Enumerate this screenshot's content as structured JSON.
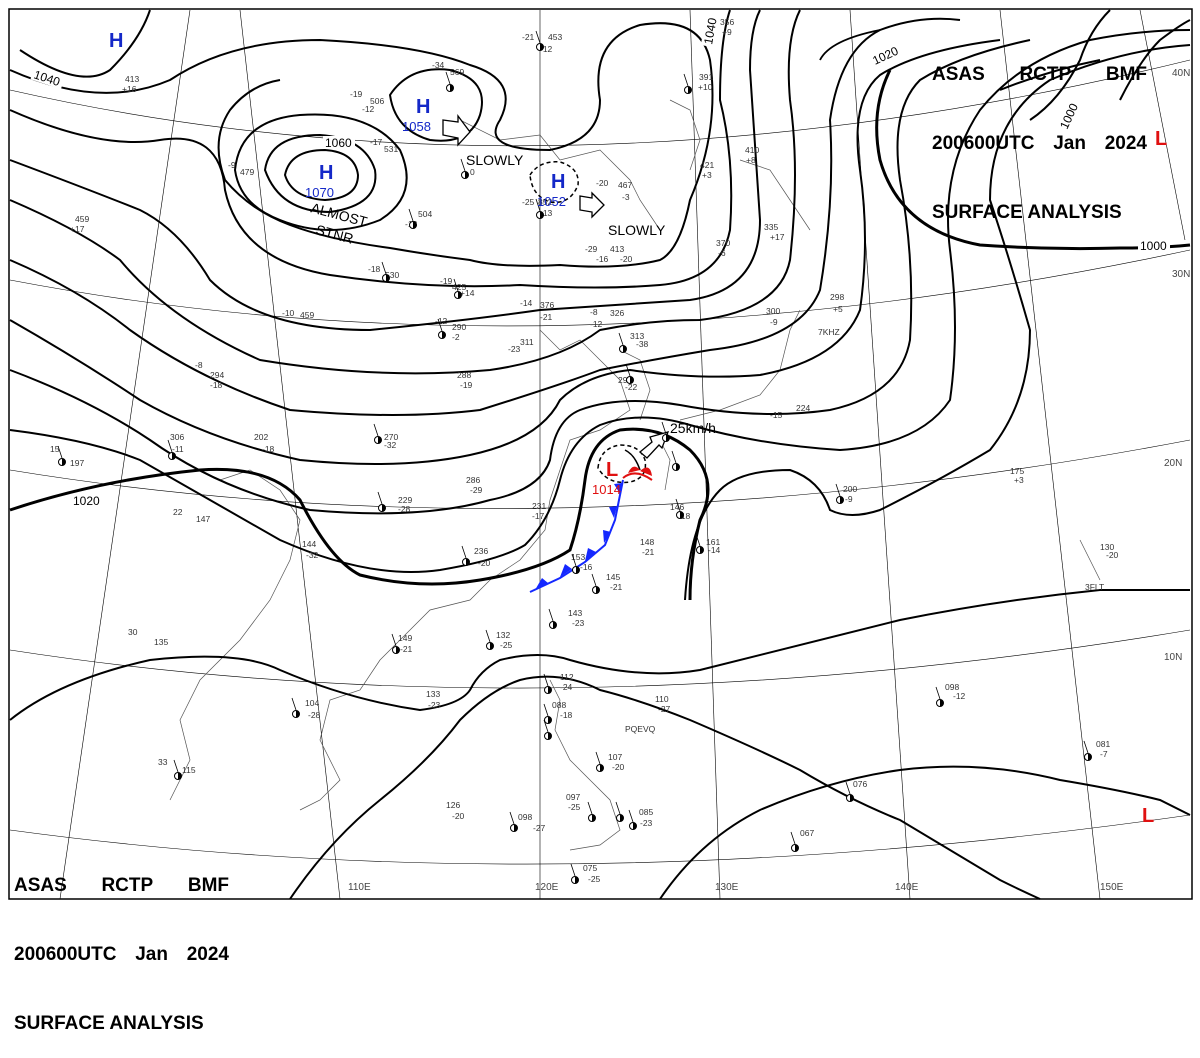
{
  "header": {
    "line1": [
      "ASAS",
      "RCTP",
      "BMF"
    ],
    "line2": [
      "200600UTC",
      "Jan",
      "2024"
    ],
    "line3": "SURFACE ANALYSIS"
  },
  "longitude_labels": [
    "110E",
    "120E",
    "130E",
    "140E",
    "150E"
  ],
  "latitude_labels": [
    "40N",
    "30N",
    "20N",
    "10N"
  ],
  "isobar_labels": [
    "1040",
    "1040",
    "1060",
    "1020",
    "1000",
    "1000",
    "1020"
  ],
  "centers": [
    {
      "type": "H",
      "pressure": "1070",
      "color": "#1428c8"
    },
    {
      "type": "H",
      "pressure": "1058",
      "color": "#1428c8"
    },
    {
      "type": "H",
      "pressure": "1052",
      "color": "#1428c8"
    },
    {
      "type": "H",
      "pressure": "",
      "color": "#1428c8"
    },
    {
      "type": "L",
      "pressure": "1014",
      "color": "#e01010"
    },
    {
      "type": "L",
      "pressure": "",
      "color": "#e01010"
    },
    {
      "type": "L",
      "pressure": "",
      "color": "#e01010"
    }
  ],
  "motion_labels": [
    "SLOWLY",
    "SLOWLY",
    "ALMOST",
    "STNR",
    "25km/h"
  ],
  "station_labels": [
    "453",
    "-12",
    "-21",
    "569",
    "-34",
    "506",
    "-19",
    "-12",
    "531",
    "-17",
    "479",
    "-9",
    "504",
    "-13",
    "0",
    "467",
    "-20",
    "-3",
    "852",
    "-25",
    "-13",
    "413",
    "-29",
    "-16",
    "-20",
    "425",
    "-19",
    "+14",
    "530",
    "-18",
    "376",
    "-14",
    "-21",
    "326",
    "-8",
    "-12",
    "290",
    "-12",
    "-2",
    "311",
    "-23",
    "459",
    "-10",
    "294",
    "-8",
    "-18",
    "288",
    "-19",
    "270",
    "-32",
    "202",
    "-18",
    "306",
    "-11",
    "197",
    "15",
    "286",
    "-29",
    "229",
    "-28",
    "147",
    "22",
    "144",
    "-32",
    "231",
    "-17",
    "236",
    "-20",
    "153",
    "-16",
    "145",
    "-21",
    "143",
    "-23",
    "132",
    "-25",
    "149",
    "-21",
    "133",
    "-23",
    "104",
    "-28",
    "135",
    "30",
    "115",
    "33",
    "126",
    "-20",
    "098",
    "-27",
    "075",
    "-25",
    "112",
    "-24",
    "088",
    "-18",
    "107",
    "-20",
    "097",
    "-25",
    "085",
    "-23",
    "110",
    "-27",
    "148",
    "-21",
    "146",
    "-18",
    "161",
    "-14",
    "200",
    "-9",
    "175",
    "+3",
    "130",
    "-20",
    "081",
    "-7",
    "076",
    "067",
    "098",
    "-12",
    "298",
    "+5",
    "300",
    "-9",
    "335",
    "+17",
    "370",
    "-6",
    "391",
    "+10",
    "356",
    "+9",
    "421",
    "+3",
    "410",
    "+8",
    "313",
    "-38",
    "224",
    "-15",
    "293",
    "-22",
    "7KHZ",
    "3FLT",
    "PQEVQ",
    "413",
    "+16",
    "459",
    "+17"
  ]
}
